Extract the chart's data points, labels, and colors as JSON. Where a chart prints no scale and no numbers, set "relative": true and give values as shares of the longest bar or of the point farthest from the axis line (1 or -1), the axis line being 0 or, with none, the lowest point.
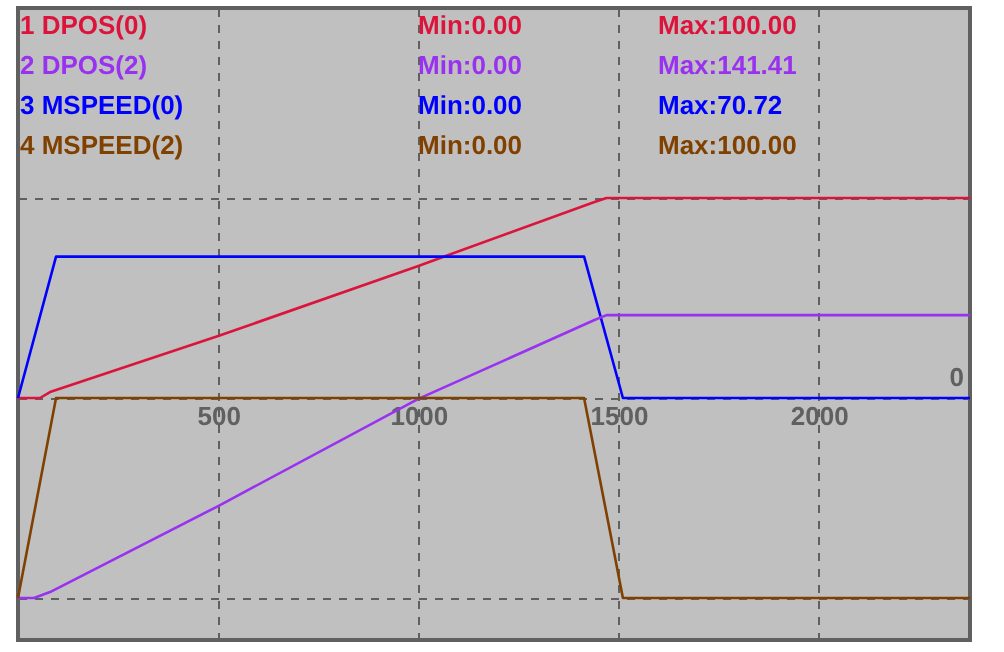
{
  "chart_data": {
    "type": "line",
    "relative": true,
    "xlim": [
      0,
      2378
    ],
    "xticks": [
      500,
      1000,
      1500,
      2000
    ],
    "tick_labels": "x",
    "grid": true,
    "legend": "top left",
    "line_style": "solid",
    "marker": "none",
    "annotations": [
      "Min:0.00",
      "Max:100.00",
      "Min:0.00",
      "Max:141.41",
      "Min:0.00",
      "Max:70.72",
      "Min:0.00",
      "Max:100.00",
      "0"
    ],
    "series": [
      {
        "name": "1 DPOS(0)",
        "color": "#dc143c",
        "x": [
          0,
          55,
          80,
          500,
          1000,
          1440,
          1470,
          2378
        ],
        "values": [
          0,
          0,
          0.021,
          0.219,
          0.467,
          0.693,
          0.707,
          0.707
        ]
      },
      {
        "name": "2 DPOS(2)",
        "color": "#9932f0",
        "axis": "y2",
        "x": [
          0,
          40,
          80,
          500,
          1000,
          1440,
          1470,
          2378
        ],
        "values": [
          0,
          0,
          0.021,
          0.325,
          0.704,
          0.983,
          1,
          1
        ]
      },
      {
        "name": "3 MSPEED(0)",
        "color": "#0000ff",
        "x": [
          0,
          95,
          1414,
          1511,
          2378
        ],
        "values": [
          0,
          0.5,
          0.5,
          0,
          0
        ]
      },
      {
        "name": "4 MSPEED(2)",
        "color": "#804000",
        "axis": "y2",
        "x": [
          0,
          95,
          1414,
          1511,
          2378
        ],
        "values": [
          0,
          0.707,
          0.707,
          0,
          0
        ]
      }
    ]
  }
}
